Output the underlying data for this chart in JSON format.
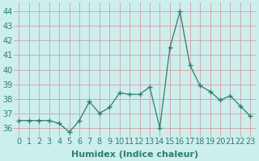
{
  "x": [
    0,
    1,
    2,
    3,
    4,
    5,
    6,
    7,
    8,
    9,
    10,
    11,
    12,
    13,
    14,
    15,
    16,
    17,
    18,
    19,
    20,
    21,
    22,
    23
  ],
  "y": [
    36.5,
    36.5,
    36.5,
    36.5,
    36.3,
    35.7,
    36.5,
    37.8,
    37.0,
    37.4,
    38.4,
    38.3,
    38.3,
    38.8,
    36.0,
    41.5,
    44.0,
    40.3,
    38.9,
    38.5,
    37.9,
    38.2,
    37.5,
    36.8
  ],
  "line_color": "#2e7d6e",
  "marker": "+",
  "marker_size": 4,
  "bg_color": "#cceeed",
  "grid_color_major": "#d4a0a0",
  "xlabel": "Humidex (Indice chaleur)",
  "xlabel_fontsize": 8,
  "tick_fontsize": 7,
  "ylim": [
    35.4,
    44.6
  ],
  "yticks": [
    36,
    37,
    38,
    39,
    40,
    41,
    42,
    43,
    44
  ],
  "xlim": [
    -0.5,
    23.5
  ],
  "xticks": [
    0,
    1,
    2,
    3,
    4,
    5,
    6,
    7,
    8,
    9,
    10,
    11,
    12,
    13,
    14,
    15,
    16,
    17,
    18,
    19,
    20,
    21,
    22,
    23
  ]
}
